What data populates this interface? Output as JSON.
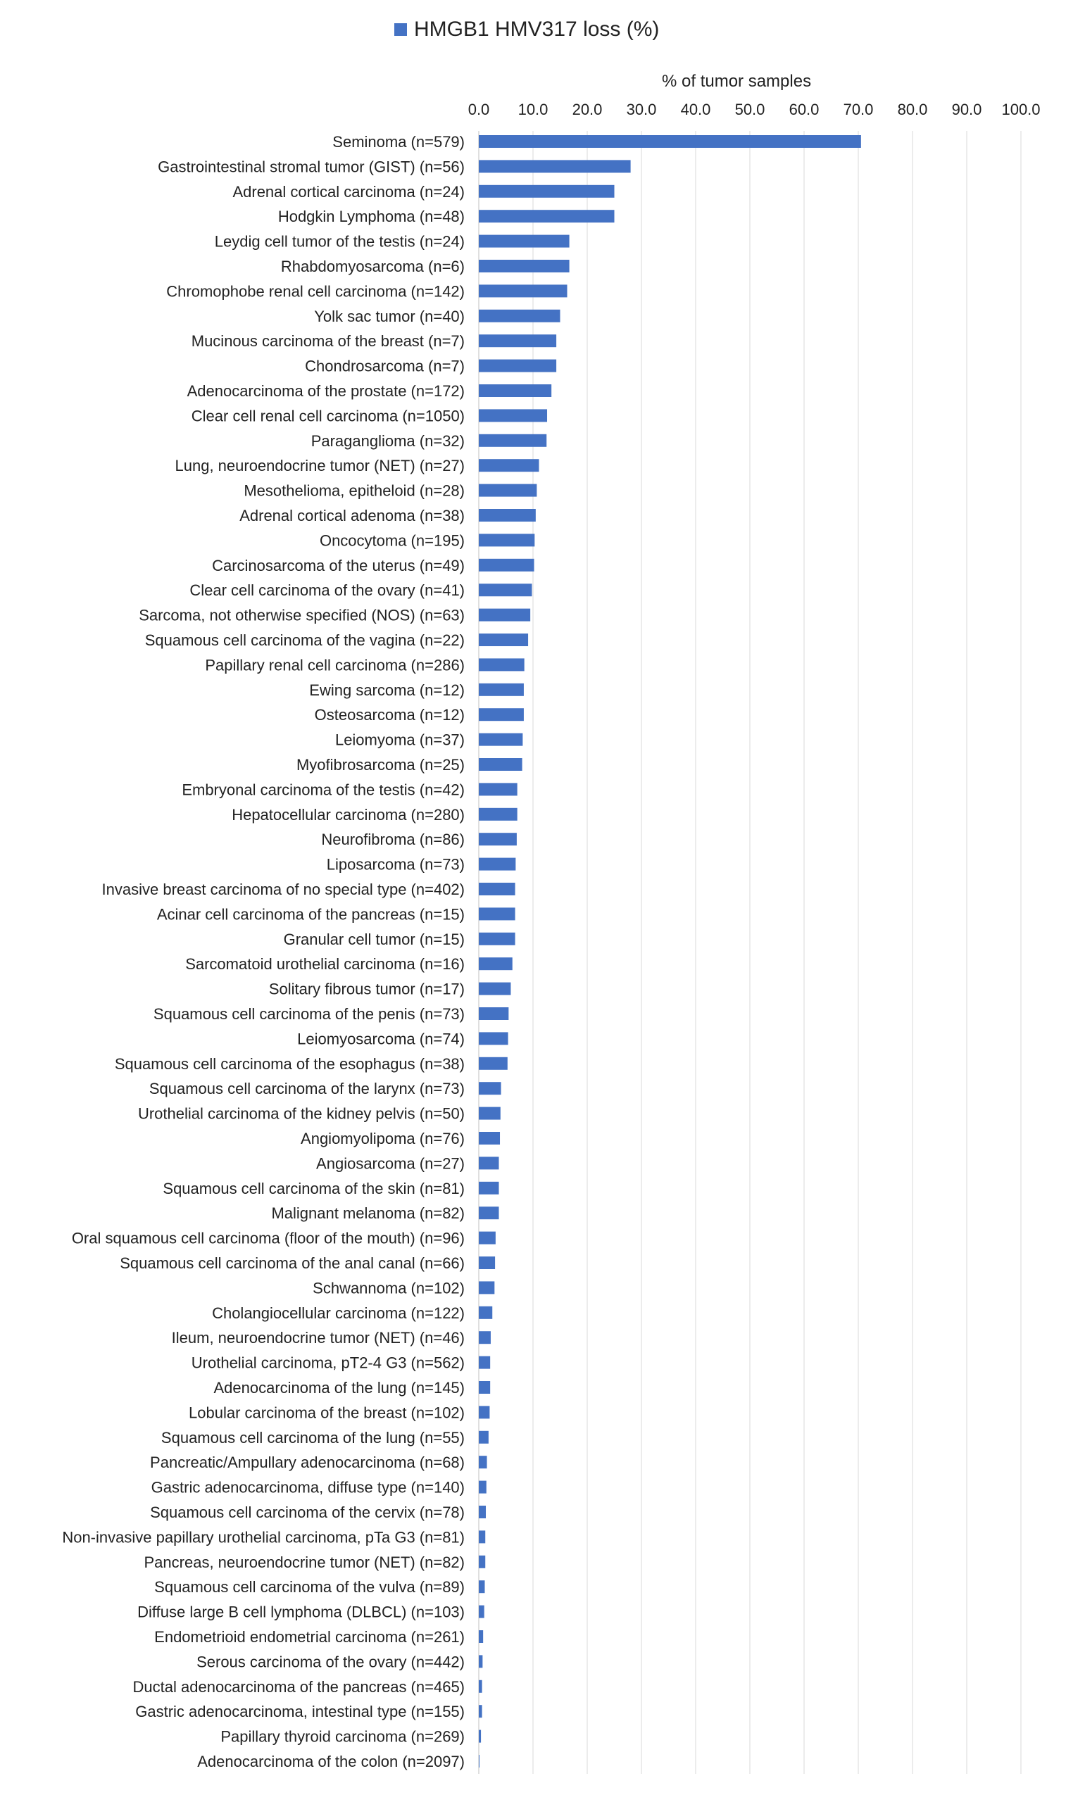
{
  "chart_data": {
    "type": "bar",
    "orientation": "horizontal",
    "title": "",
    "xlabel": "% of tumor samples",
    "ylabel": "",
    "xlim": [
      0,
      100
    ],
    "x_ticks": [
      "0.0",
      "10.0",
      "20.0",
      "30.0",
      "40.0",
      "50.0",
      "60.0",
      "70.0",
      "80.0",
      "90.0",
      "100.0"
    ],
    "x_axis_position": "top",
    "grid": "vertical",
    "legend_position": "top",
    "color": "#4472C4",
    "series": [
      {
        "name": "HMGB1 HMV317 loss (%)",
        "categories": [
          "Seminoma (n=579)",
          "Gastrointestinal stromal tumor (GIST) (n=56)",
          "Adrenal cortical carcinoma (n=24)",
          "Hodgkin Lymphoma (n=48)",
          "Leydig cell tumor of the testis (n=24)",
          "Rhabdomyosarcoma (n=6)",
          "Chromophobe renal cell carcinoma (n=142)",
          "Yolk sac tumor (n=40)",
          "Mucinous carcinoma of the breast (n=7)",
          "Chondrosarcoma (n=7)",
          "Adenocarcinoma of the prostate (n=172)",
          "Clear cell renal cell carcinoma (n=1050)",
          "Paraganglioma (n=32)",
          "Lung, neuroendocrine tumor (NET) (n=27)",
          "Mesothelioma, epitheloid (n=28)",
          "Adrenal cortical adenoma (n=38)",
          "Oncocytoma (n=195)",
          "Carcinosarcoma of the uterus (n=49)",
          "Clear cell carcinoma of the ovary (n=41)",
          "Sarcoma, not otherwise specified (NOS) (n=63)",
          "Squamous cell carcinoma of the vagina (n=22)",
          "Papillary renal cell carcinoma (n=286)",
          "Ewing sarcoma (n=12)",
          "Osteosarcoma (n=12)",
          "Leiomyoma (n=37)",
          "Myofibrosarcoma (n=25)",
          "Embryonal carcinoma of the testis (n=42)",
          "Hepatocellular carcinoma (n=280)",
          "Neurofibroma (n=86)",
          "Liposarcoma (n=73)",
          "Invasive breast carcinoma of no special type (n=402)",
          "Acinar cell carcinoma of the pancreas (n=15)",
          "Granular cell tumor (n=15)",
          "Sarcomatoid urothelial carcinoma (n=16)",
          "Solitary fibrous tumor (n=17)",
          "Squamous cell carcinoma of the penis (n=73)",
          "Leiomyosarcoma (n=74)",
          "Squamous cell carcinoma of the esophagus (n=38)",
          "Squamous cell carcinoma of the larynx (n=73)",
          "Urothelial carcinoma of the kidney pelvis (n=50)",
          "Angiomyolipoma (n=76)",
          "Angiosarcoma (n=27)",
          "Squamous cell carcinoma of the skin (n=81)",
          "Malignant melanoma (n=82)",
          "Oral squamous cell carcinoma (floor of the mouth) (n=96)",
          "Squamous cell carcinoma of the anal canal (n=66)",
          "Schwannoma (n=102)",
          "Cholangiocellular carcinoma (n=122)",
          "Ileum, neuroendocrine tumor (NET) (n=46)",
          "Urothelial carcinoma, pT2-4 G3 (n=562)",
          "Adenocarcinoma of the lung (n=145)",
          "Lobular carcinoma of the breast (n=102)",
          "Squamous cell carcinoma of the lung (n=55)",
          "Pancreatic/Ampullary adenocarcinoma (n=68)",
          "Gastric adenocarcinoma, diffuse type (n=140)",
          "Squamous cell carcinoma of the cervix (n=78)",
          "Non-invasive papillary urothelial carcinoma, pTa G3 (n=81)",
          "Pancreas, neuroendocrine tumor (NET) (n=82)",
          "Squamous cell carcinoma of the vulva (n=89)",
          "Diffuse large B cell lymphoma (DLBCL) (n=103)",
          "Endometrioid endometrial carcinoma (n=261)",
          "Serous carcinoma of the ovary (n=442)",
          "Ductal adenocarcinoma of the pancreas (n=465)",
          "Gastric adenocarcinoma, intestinal type (n=155)",
          "Papillary thyroid carcinoma (n=269)",
          "Adenocarcinoma of the colon (n=2097)"
        ],
        "values": [
          70.5,
          28.0,
          25.0,
          25.0,
          16.7,
          16.7,
          16.3,
          15.0,
          14.3,
          14.3,
          13.4,
          12.6,
          12.5,
          11.1,
          10.7,
          10.5,
          10.3,
          10.2,
          9.8,
          9.5,
          9.1,
          8.4,
          8.3,
          8.3,
          8.1,
          8.0,
          7.1,
          7.1,
          7.0,
          6.8,
          6.7,
          6.7,
          6.7,
          6.2,
          5.9,
          5.5,
          5.4,
          5.3,
          4.1,
          4.0,
          3.9,
          3.7,
          3.7,
          3.7,
          3.1,
          3.0,
          2.9,
          2.5,
          2.2,
          2.1,
          2.1,
          2.0,
          1.8,
          1.5,
          1.4,
          1.3,
          1.2,
          1.2,
          1.1,
          1.0,
          0.8,
          0.7,
          0.6,
          0.6,
          0.4,
          0.1
        ]
      }
    ]
  }
}
